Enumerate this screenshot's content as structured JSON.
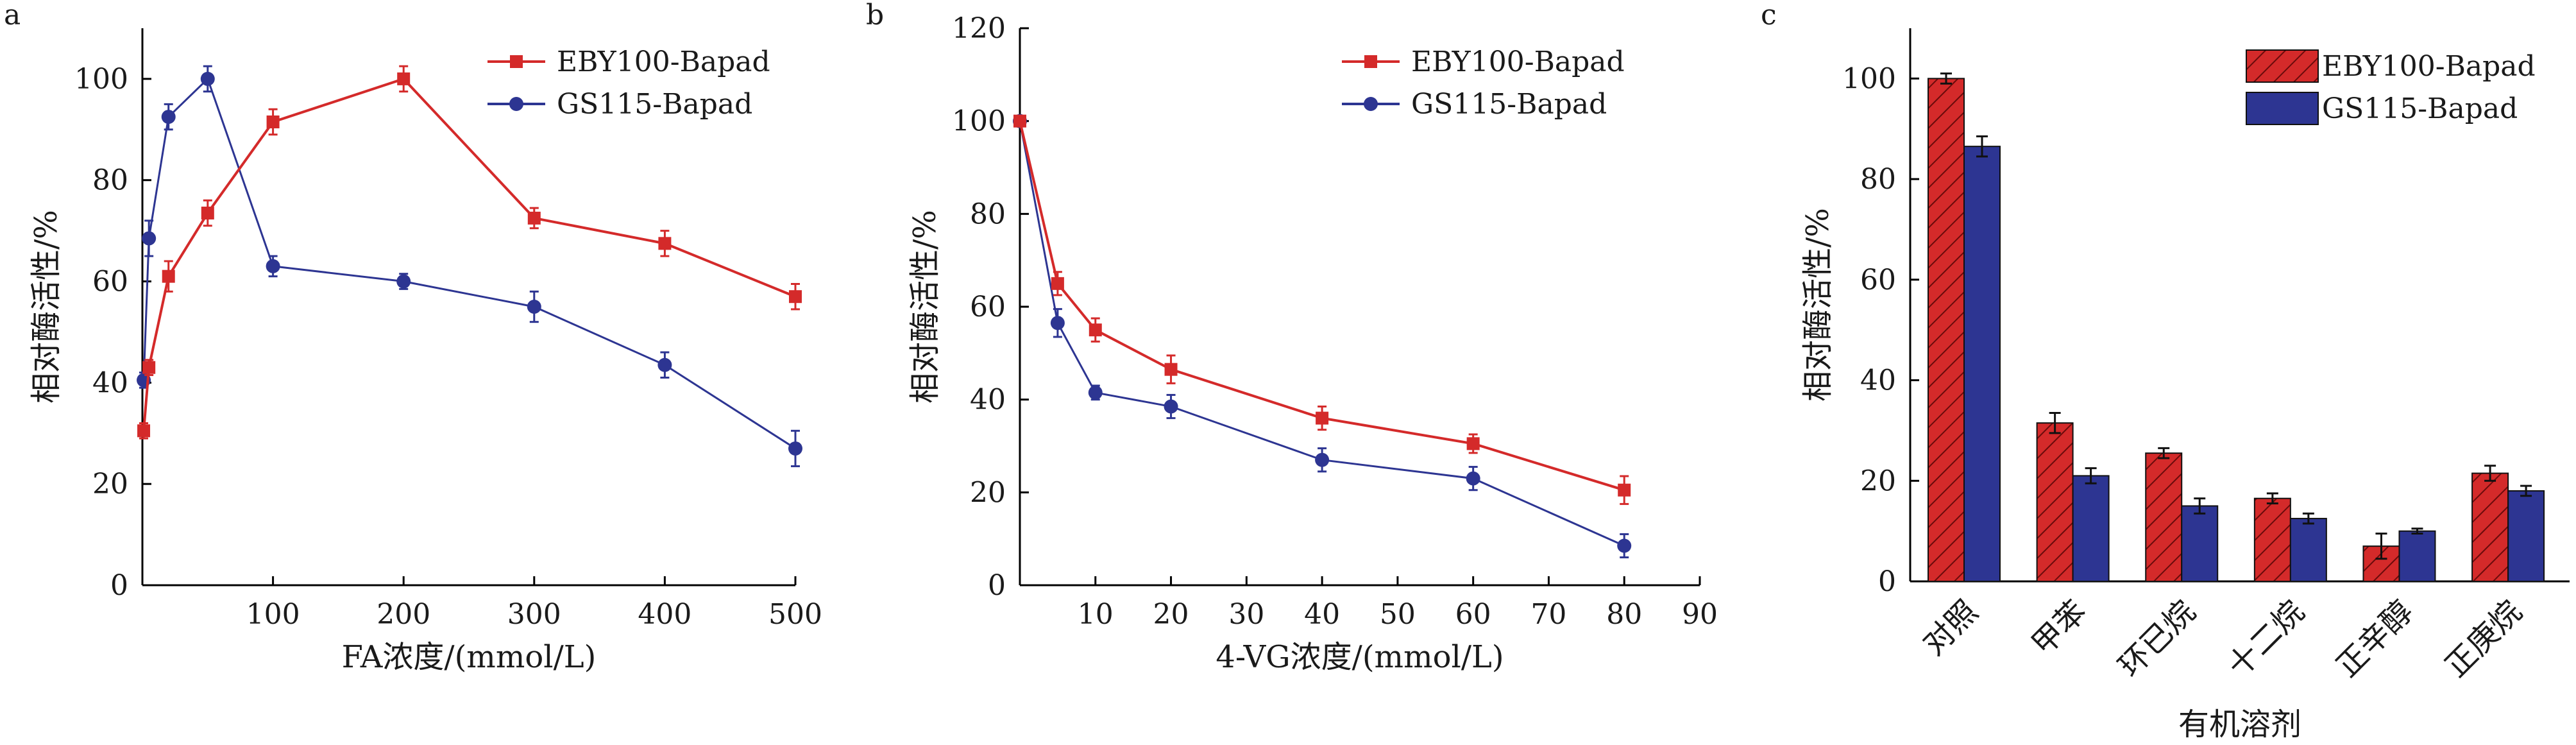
{
  "panels": [
    "a",
    "b",
    "c"
  ],
  "chart_data": [
    {
      "type": "line",
      "title": "",
      "xlabel": "FA浓度/(mmol/L)",
      "ylabel": "相对酶活性/%",
      "xlim": [
        0,
        500
      ],
      "ylim": [
        0,
        110
      ],
      "xticks": [
        100,
        200,
        300,
        400,
        500
      ],
      "yticks": [
        0,
        20,
        40,
        60,
        80,
        100
      ],
      "legend": "top-right",
      "series": [
        {
          "name": "EBY100-Bapad",
          "color": "#d42a2a",
          "marker": "square",
          "x": [
            1,
            5,
            20,
            50,
            100,
            200,
            300,
            400,
            500
          ],
          "y": [
            30.5,
            43.0,
            61.0,
            73.5,
            91.5,
            100.0,
            72.5,
            67.5,
            57.0
          ],
          "err": [
            1.5,
            1.5,
            3.0,
            2.5,
            2.5,
            2.5,
            2.0,
            2.5,
            2.5
          ]
        },
        {
          "name": "GS115-Bapad",
          "color": "#2d3592",
          "marker": "circle",
          "x": [
            1,
            5,
            20,
            50,
            100,
            200,
            300,
            400,
            500
          ],
          "y": [
            40.5,
            68.5,
            92.5,
            100.0,
            63.0,
            60.0,
            55.0,
            43.5,
            27.0
          ],
          "err": [
            1.5,
            3.5,
            2.5,
            2.5,
            2.0,
            1.5,
            3.0,
            2.5,
            3.5
          ]
        }
      ]
    },
    {
      "type": "line",
      "title": "",
      "xlabel": "4-VG浓度/(mmol/L)",
      "ylabel": "相对酶活性/%",
      "xlim": [
        0,
        90
      ],
      "ylim": [
        0,
        120
      ],
      "xticks": [
        10,
        20,
        30,
        40,
        50,
        60,
        70,
        80,
        90
      ],
      "yticks": [
        0,
        20,
        40,
        60,
        80,
        100,
        120
      ],
      "legend": "top-right",
      "series": [
        {
          "name": "EBY100-Bapad",
          "color": "#d42a2a",
          "marker": "square",
          "x": [
            0,
            5,
            10,
            20,
            40,
            60,
            80
          ],
          "y": [
            100.0,
            65.0,
            55.0,
            46.5,
            36.0,
            30.5,
            20.5
          ],
          "err": [
            1.0,
            2.5,
            2.5,
            3.0,
            2.5,
            2.0,
            3.0
          ]
        },
        {
          "name": "GS115-Bapad",
          "color": "#2d3592",
          "marker": "circle",
          "x": [
            0,
            5,
            10,
            20,
            40,
            60,
            80
          ],
          "y": [
            100.0,
            56.5,
            41.5,
            38.5,
            27.0,
            23.0,
            8.5
          ],
          "err": [
            1.0,
            3.0,
            1.5,
            2.5,
            2.5,
            2.5,
            2.5
          ]
        }
      ]
    },
    {
      "type": "bar",
      "title": "",
      "xlabel": "有机溶剂",
      "ylabel": "相对酶活性/%",
      "ylim": [
        0,
        110
      ],
      "yticks": [
        0,
        20,
        40,
        60,
        80,
        100
      ],
      "categories": [
        "对照",
        "甲苯",
        "环已烷",
        "十二烷",
        "正辛醇",
        "正庚烷"
      ],
      "legend": "top-right",
      "series": [
        {
          "name": "EBY100-Bapad",
          "color": "#d42a2a",
          "pattern": "diagonal-hatch",
          "values": [
            100.0,
            31.5,
            25.5,
            16.5,
            7.0,
            21.5
          ],
          "err": [
            1.0,
            2.0,
            1.0,
            1.0,
            2.5,
            1.5
          ]
        },
        {
          "name": "GS115-Bapad",
          "color": "#2d3592",
          "pattern": "solid",
          "values": [
            86.5,
            21.0,
            15.0,
            12.5,
            10.0,
            18.0
          ],
          "err": [
            2.0,
            1.5,
            1.5,
            1.0,
            0.5,
            1.0
          ]
        }
      ]
    }
  ]
}
